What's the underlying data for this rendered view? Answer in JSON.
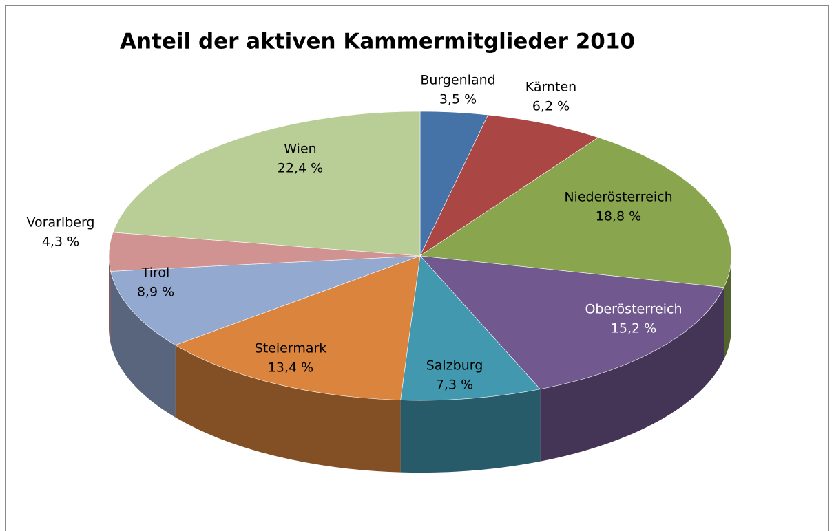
{
  "chart_data": {
    "type": "pie",
    "title": "Anteil der aktiven Kammermitglieder 2010",
    "categories": [
      "Burgenland",
      "Kärnten",
      "Niederösterreich",
      "Oberösterreich",
      "Salzburg",
      "Steiermark",
      "Tirol",
      "Vorarlberg",
      "Wien"
    ],
    "values": [
      3.5,
      6.2,
      18.8,
      15.2,
      7.3,
      13.4,
      8.9,
      4.3,
      22.4
    ],
    "value_labels": [
      "3,5 %",
      "6,2 %",
      "18,8 %",
      "15,2 %",
      "7,3 %",
      "13,4 %",
      "8,9 %",
      "4,3 %",
      "22,4 %"
    ],
    "colors": [
      "#4572a7",
      "#aa4643",
      "#89a54e",
      "#71588f",
      "#4198af",
      "#db843d",
      "#93a9cf",
      "#d19392",
      "#b9cd96"
    ]
  }
}
